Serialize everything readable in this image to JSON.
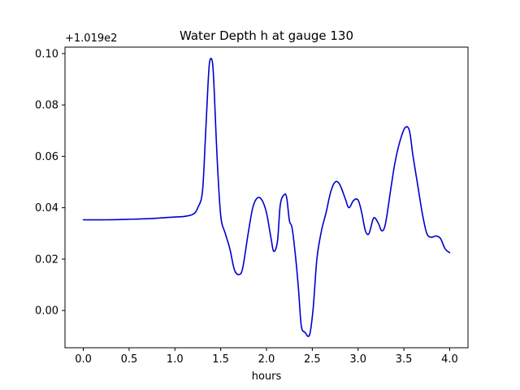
{
  "chart_data": {
    "type": "line",
    "title": "Water Depth h at gauge 130",
    "xlabel": "hours",
    "ylabel": "",
    "offset_label": "+1.019e2",
    "xlim": [
      -0.2,
      4.2
    ],
    "ylim": [
      -0.0145,
      0.1025
    ],
    "xticks": [
      0.0,
      0.5,
      1.0,
      1.5,
      2.0,
      2.5,
      3.0,
      3.5,
      4.0
    ],
    "xtick_labels": [
      "0.0",
      "0.5",
      "1.0",
      "1.5",
      "2.0",
      "2.5",
      "3.0",
      "3.5",
      "4.0"
    ],
    "yticks": [
      0.0,
      0.02,
      0.04,
      0.06,
      0.08,
      0.1
    ],
    "ytick_labels": [
      "0.00",
      "0.02",
      "0.04",
      "0.06",
      "0.08",
      "0.10"
    ],
    "grid": false,
    "series": [
      {
        "name": "",
        "color": "#0000cc",
        "x": [
          0.0,
          0.25,
          0.5,
          0.75,
          1.0,
          1.1,
          1.2,
          1.25,
          1.3,
          1.33,
          1.36,
          1.38,
          1.41,
          1.43,
          1.46,
          1.5,
          1.55,
          1.6,
          1.65,
          1.7,
          1.74,
          1.8,
          1.85,
          1.9,
          1.95,
          2.0,
          2.05,
          2.08,
          2.12,
          2.15,
          2.19,
          2.22,
          2.25,
          2.28,
          2.32,
          2.35,
          2.38,
          2.42,
          2.47,
          2.51,
          2.55,
          2.6,
          2.65,
          2.7,
          2.75,
          2.8,
          2.86,
          2.9,
          2.95,
          3.0,
          3.04,
          3.08,
          3.12,
          3.17,
          3.22,
          3.26,
          3.3,
          3.36,
          3.4,
          3.45,
          3.51,
          3.56,
          3.6,
          3.65,
          3.7,
          3.75,
          3.8,
          3.85,
          3.9,
          3.95,
          4.0
        ],
        "y": [
          0.0353,
          0.0353,
          0.0355,
          0.0358,
          0.0364,
          0.0366,
          0.0375,
          0.04,
          0.046,
          0.065,
          0.087,
          0.097,
          0.0965,
          0.085,
          0.06,
          0.037,
          0.03,
          0.024,
          0.0158,
          0.014,
          0.0165,
          0.03,
          0.04,
          0.0438,
          0.043,
          0.038,
          0.028,
          0.023,
          0.027,
          0.041,
          0.045,
          0.044,
          0.035,
          0.032,
          0.02,
          0.008,
          -0.006,
          -0.0085,
          -0.0095,
          0.001,
          0.02,
          0.031,
          0.038,
          0.046,
          0.05,
          0.049,
          0.0435,
          0.04,
          0.0428,
          0.043,
          0.038,
          0.031,
          0.03,
          0.036,
          0.034,
          0.031,
          0.034,
          0.048,
          0.057,
          0.065,
          0.071,
          0.07,
          0.06,
          0.049,
          0.038,
          0.03,
          0.0285,
          0.029,
          0.028,
          0.024,
          0.0225
        ]
      }
    ]
  }
}
